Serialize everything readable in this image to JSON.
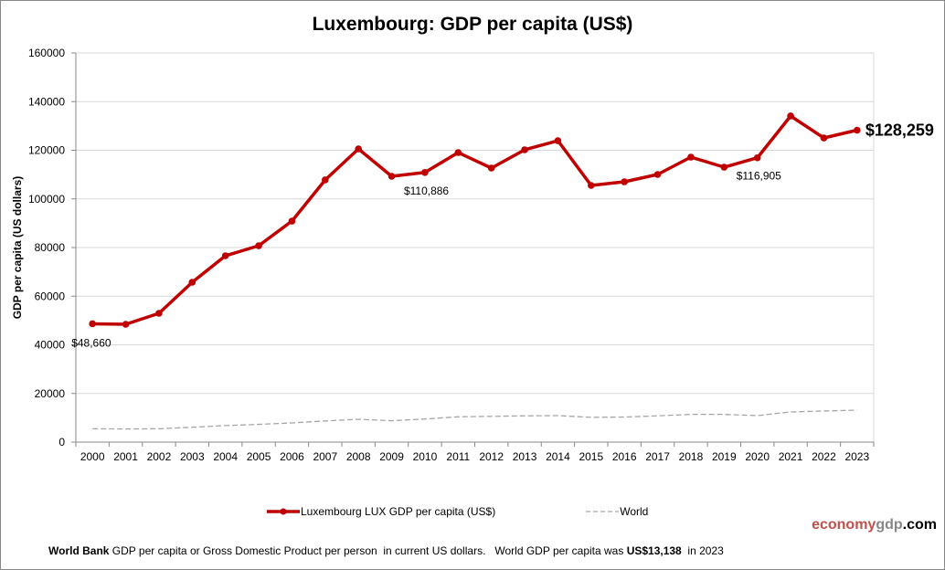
{
  "chart_data": {
    "type": "line",
    "title": "Luxembourg: GDP per capita (US$)",
    "ylabel": "GDP per capita (US dollars)",
    "xlabel": "",
    "ylim": [
      0,
      160000
    ],
    "yticks": [
      0,
      20000,
      40000,
      60000,
      80000,
      100000,
      120000,
      140000,
      160000
    ],
    "grid": true,
    "legend_position": "bottom",
    "categories": [
      "2000",
      "2001",
      "2002",
      "2003",
      "2004",
      "2005",
      "2006",
      "2007",
      "2008",
      "2009",
      "2010",
      "2011",
      "2012",
      "2013",
      "2014",
      "2015",
      "2016",
      "2017",
      "2018",
      "2019",
      "2020",
      "2021",
      "2022",
      "2023"
    ],
    "series": [
      {
        "name": "Luxembourg LUX GDP per capita (US$)",
        "color": "#c00000",
        "values": [
          48660,
          48450,
          52960,
          65730,
          76620,
          80750,
          90890,
          107800,
          120560,
          109300,
          110886,
          119060,
          112680,
          120190,
          123940,
          105540,
          107040,
          110050,
          117180,
          113050,
          116905,
          134090,
          125070,
          128259
        ]
      },
      {
        "name": "World",
        "color": "#a6a6a6",
        "dashed": true,
        "values": [
          5500,
          5400,
          5500,
          6100,
          6800,
          7300,
          7900,
          8700,
          9400,
          8800,
          9500,
          10400,
          10600,
          10800,
          10900,
          10200,
          10300,
          10800,
          11400,
          11400,
          10900,
          12400,
          12800,
          13138
        ]
      }
    ],
    "annotations": [
      {
        "category": "2000",
        "text": "$48,660"
      },
      {
        "category": "2010",
        "text": "$110,886"
      },
      {
        "category": "2020",
        "text": "$116,905"
      },
      {
        "category": "2023",
        "text": "$128,259"
      }
    ]
  },
  "brand": {
    "part1": "economy",
    "part2": "gdp",
    "part3": ".com"
  },
  "footer": {
    "source": "World Bank",
    "text": " GDP per capita or Gross Domestic Product per person  in current US dollars.   World GDP per capita was ",
    "value": "US$13,138",
    "tail": "  in 2023"
  }
}
